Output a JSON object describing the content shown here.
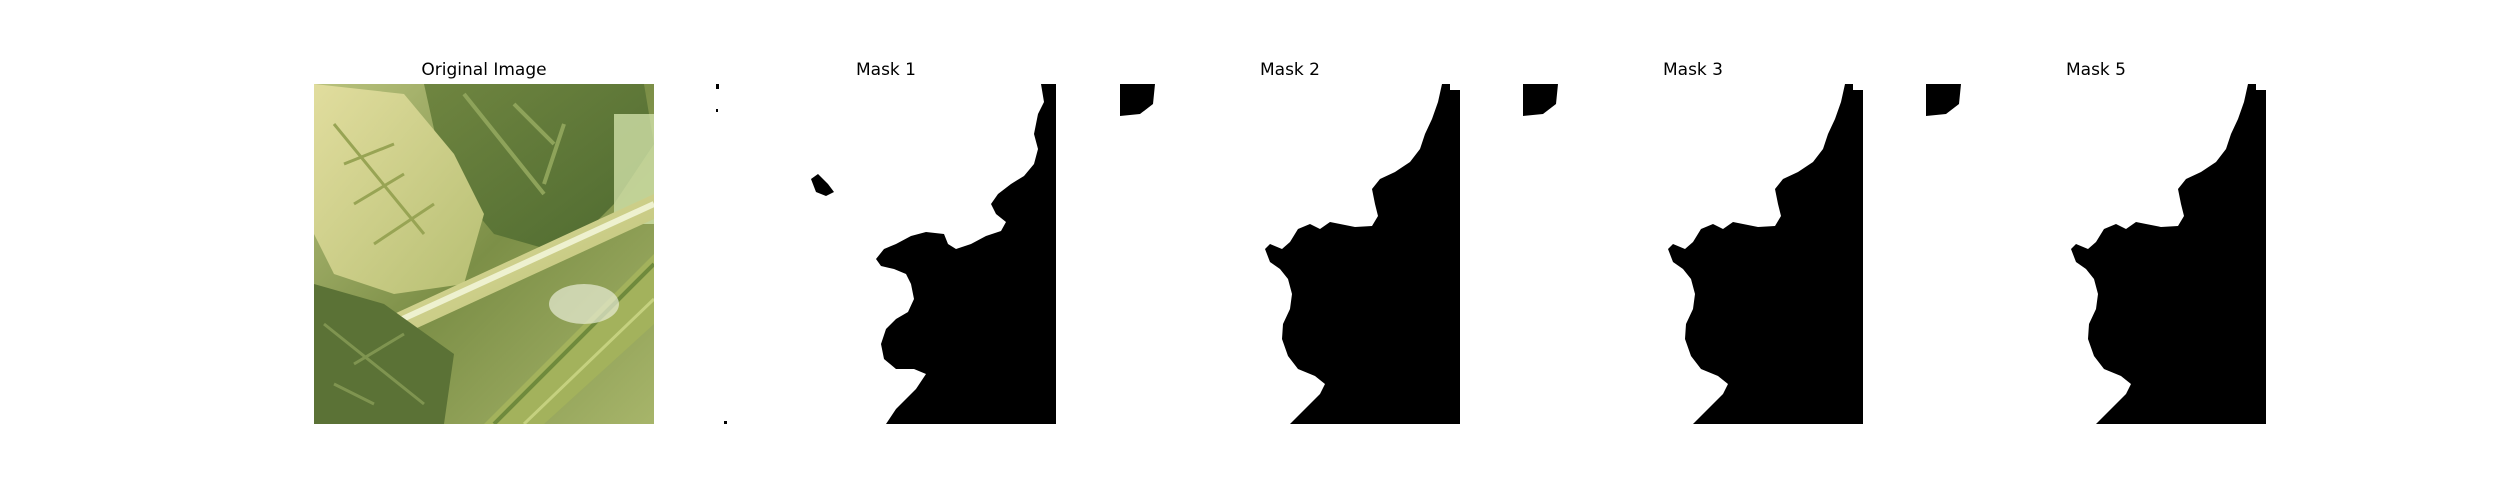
{
  "figure": {
    "panels": [
      {
        "title": "Original Image",
        "kind": "photo",
        "depicts": "green-leaf-photo"
      },
      {
        "title": "Mask 1",
        "kind": "mask"
      },
      {
        "title": "Mask 2",
        "kind": "mask"
      },
      {
        "title": "Mask 3",
        "kind": "mask"
      },
      {
        "title": "Mask 5",
        "kind": "mask"
      }
    ],
    "colors": {
      "mask_foreground": "#000000",
      "mask_background": "#ffffff",
      "leaf_light": "#cfd58f",
      "leaf_mid": "#9aa85a",
      "leaf_dark": "#5f7437",
      "stem": "#dfe6b8"
    }
  }
}
